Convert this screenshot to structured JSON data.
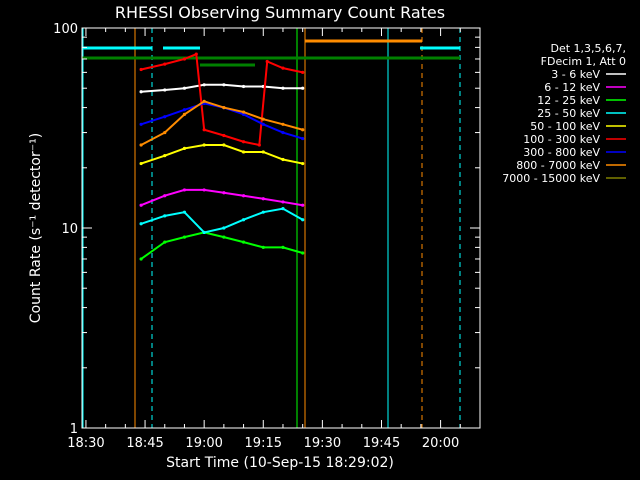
{
  "chart_data": {
    "type": "line",
    "title": "RHESSI Observing Summary Count Rates",
    "xlabel": "Start Time (10-Sep-15 18:29:02)",
    "ylabel": "Count Rate (s⁻¹ detector⁻¹)",
    "scale": {
      "y": "log"
    },
    "ylim": [
      1,
      100
    ],
    "xlim": [
      "18:29",
      "20:10"
    ],
    "xticks": [
      "18:30",
      "18:45",
      "19:00",
      "19:15",
      "19:30",
      "19:45",
      "20:00"
    ],
    "yticks": [
      "1",
      "10",
      "100"
    ],
    "legend": {
      "position": "right",
      "header": [
        "Det 1,3,5,6,7,",
        "FDecim 1, Att 0"
      ],
      "entries": [
        {
          "name": "3 - 6 keV",
          "color": "#ffffff"
        },
        {
          "name": "6 - 12 keV",
          "color": "#ff00ff"
        },
        {
          "name": "12 - 25 keV",
          "color": "#00ff00"
        },
        {
          "name": "25 - 50 keV",
          "color": "#00ffff"
        },
        {
          "name": "50 - 100 keV",
          "color": "#ffff00"
        },
        {
          "name": "100 - 300 keV",
          "color": "#ff0000"
        },
        {
          "name": "300 - 800 keV",
          "color": "#0000ff"
        },
        {
          "name": "800 - 7000 keV",
          "color": "#ff8c00"
        },
        {
          "name": "7000 - 15000 keV",
          "color": "#808000"
        }
      ]
    },
    "series": [
      {
        "name": "3 - 6 keV",
        "color": "#ffffff",
        "x": [
          "18:44",
          "18:50",
          "18:55",
          "19:00",
          "19:05",
          "19:10",
          "19:15",
          "19:20",
          "19:25"
        ],
        "y": [
          48,
          49,
          50,
          52,
          52,
          51,
          51,
          50,
          50
        ]
      },
      {
        "name": "6 - 12 keV",
        "color": "#ff00ff",
        "x": [
          "18:44",
          "18:50",
          "18:55",
          "19:00",
          "19:05",
          "19:10",
          "19:15",
          "19:20",
          "19:25"
        ],
        "y": [
          13,
          14.5,
          15.5,
          15.5,
          15,
          14.5,
          14,
          13.5,
          13
        ]
      },
      {
        "name": "12 - 25 keV",
        "color": "#00ff00",
        "x": [
          "18:44",
          "18:50",
          "18:55",
          "19:00",
          "19:05",
          "19:10",
          "19:15",
          "19:20",
          "19:25"
        ],
        "y": [
          7,
          8.5,
          9,
          9.5,
          9,
          8.5,
          8,
          8,
          7.5
        ]
      },
      {
        "name": "25 - 50 keV",
        "color": "#00ffff",
        "x": [
          "18:44",
          "18:50",
          "18:55",
          "19:00",
          "19:05",
          "19:10",
          "19:15",
          "19:20",
          "19:25"
        ],
        "y": [
          10.5,
          11.5,
          12,
          9.5,
          10,
          11,
          12,
          12.5,
          11
        ]
      },
      {
        "name": "50 - 100 keV",
        "color": "#ffff00",
        "x": [
          "18:44",
          "18:50",
          "18:55",
          "19:00",
          "19:05",
          "19:10",
          "19:15",
          "19:20",
          "19:25"
        ],
        "y": [
          21,
          23,
          25,
          26,
          26,
          24,
          24,
          22,
          21
        ]
      },
      {
        "name": "100 - 300 keV",
        "color": "#ff0000",
        "x": [
          "18:44",
          "18:50",
          "18:55",
          "18:58",
          "19:00",
          "19:05",
          "19:10",
          "19:14",
          "19:16",
          "19:20",
          "19:25"
        ],
        "y": [
          62,
          66,
          70,
          74,
          31,
          29,
          27,
          26,
          68,
          63,
          60
        ]
      },
      {
        "name": "300 - 800 keV",
        "color": "#0000ff",
        "x": [
          "18:44",
          "18:50",
          "18:55",
          "19:00",
          "19:05",
          "19:10",
          "19:15",
          "19:20",
          "19:25"
        ],
        "y": [
          33,
          36,
          39,
          42,
          40,
          37,
          33,
          30,
          28
        ]
      },
      {
        "name": "800 - 7000 keV",
        "color": "#ff8c00",
        "x": [
          "18:44",
          "18:50",
          "18:55",
          "19:00",
          "19:05",
          "19:10",
          "19:15",
          "19:20",
          "19:25"
        ],
        "y": [
          26,
          30,
          37,
          43,
          40,
          38,
          35,
          33,
          31
        ]
      }
    ]
  }
}
